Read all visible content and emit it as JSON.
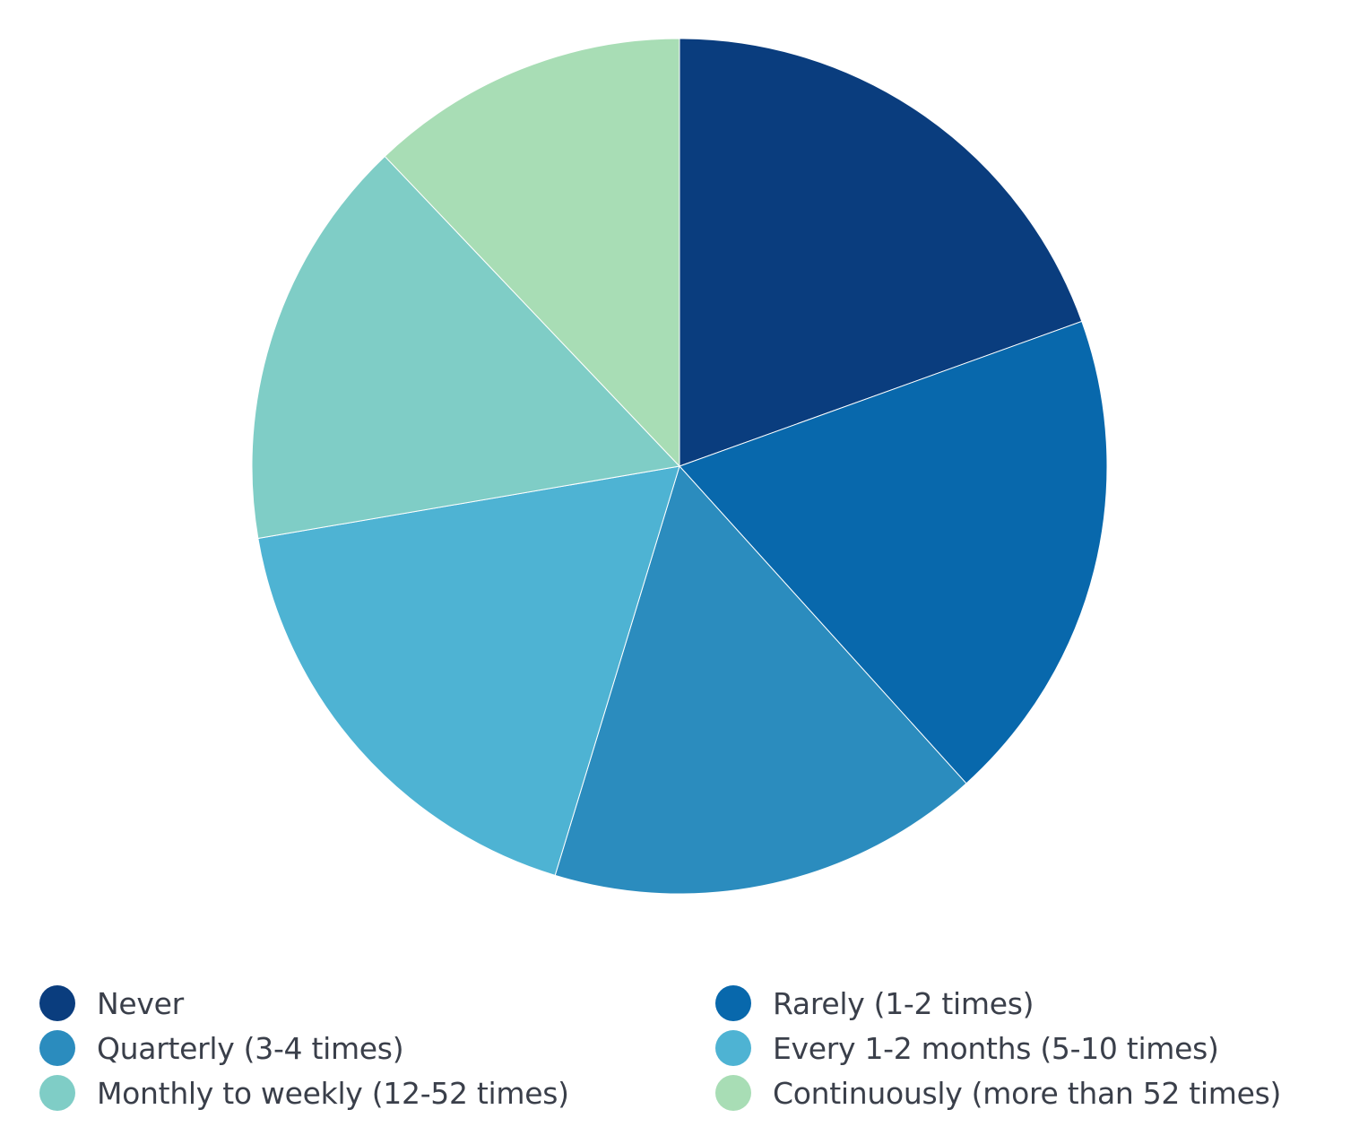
{
  "chart_data": {
    "type": "pie",
    "title": "",
    "start_angle_deg": 0,
    "direction": "clockwise",
    "legend_position": "bottom",
    "slices": [
      {
        "label": "Never",
        "value": 19.5,
        "color": "#0a3d7e"
      },
      {
        "label": "Rarely (1-2 times)",
        "value": 18.8,
        "color": "#0868ac"
      },
      {
        "label": "Quarterly (3-4 times)",
        "value": 16.4,
        "color": "#2b8cbe"
      },
      {
        "label": "Every 1-2 months (5-10 times)",
        "value": 17.6,
        "color": "#4eb3d3"
      },
      {
        "label": "Monthly to weekly (12-52 times)",
        "value": 15.6,
        "color": "#7fcdc6"
      },
      {
        "label": "Continuously (more than 52 times)",
        "value": 12.1,
        "color": "#a8ddb5"
      }
    ]
  }
}
